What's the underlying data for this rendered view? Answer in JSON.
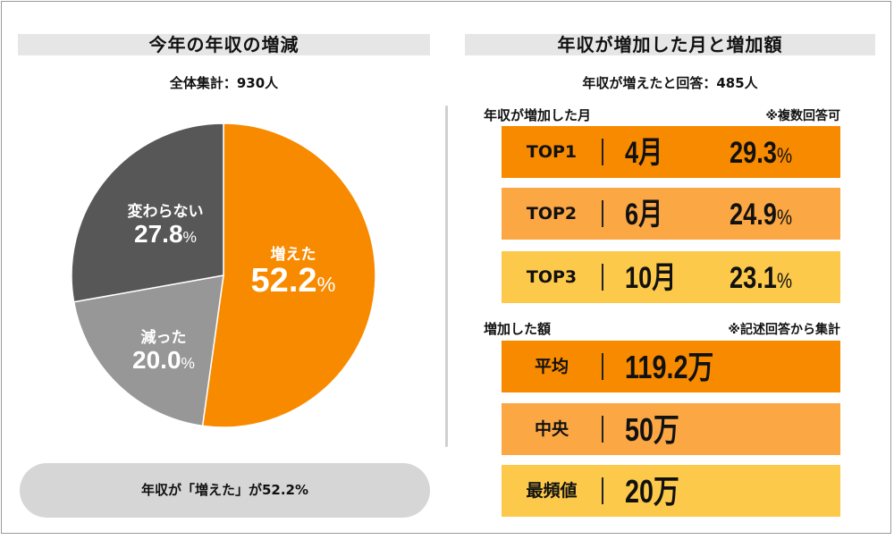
{
  "left_panel": {
    "title": "今年の年収の増減",
    "sample": "全体集計：930人",
    "summary": "年収が「増えた」が52.2%"
  },
  "chart_data": {
    "type": "pie",
    "title": "今年の年収の増減",
    "total_label": "全体集計：930人",
    "slices": [
      {
        "label": "増えた",
        "value": 52.2,
        "display": "52.2",
        "color": "#f88a00"
      },
      {
        "label": "減った",
        "value": 20.0,
        "display": "20.0",
        "color": "#979797"
      },
      {
        "label": "変わらない",
        "value": 27.8,
        "display": "27.8",
        "color": "#575757"
      }
    ],
    "unit": "%"
  },
  "right_panel": {
    "title": "年収が増加した月と増加額",
    "sample": "年収が増えたと回答：485人",
    "month_section": {
      "heading": "年収が増加した月",
      "note": "※複数回答可",
      "rows": [
        {
          "rank": "TOP1",
          "month": "4月",
          "value": "29.3",
          "unit": "%",
          "color": "#f88a00"
        },
        {
          "rank": "TOP2",
          "month": "6月",
          "value": "24.9",
          "unit": "%",
          "color": "#fba744"
        },
        {
          "rank": "TOP3",
          "month": "10月",
          "value": "23.1",
          "unit": "%",
          "color": "#fdc94a"
        }
      ]
    },
    "amount_section": {
      "heading": "増加した額",
      "note": "※記述回答から集計",
      "rows": [
        {
          "label": "平均",
          "value": "119.2万",
          "color": "#f88a00"
        },
        {
          "label": "中央",
          "value": "50万",
          "color": "#fba744"
        },
        {
          "label": "最頻値",
          "value": "20万",
          "color": "#fdc94a"
        }
      ]
    }
  }
}
